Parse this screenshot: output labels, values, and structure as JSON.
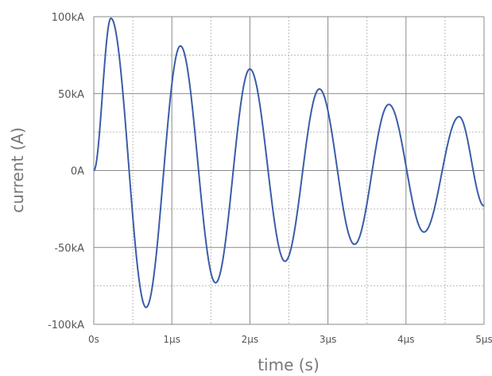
{
  "chart_data": {
    "type": "line",
    "title": "",
    "xlabel": "time (s)",
    "ylabel": "current (A)",
    "xlim": [
      0,
      5e-06
    ],
    "ylim": [
      -100000,
      100000
    ],
    "grid": true,
    "x_ticks": [
      {
        "value": 0,
        "label": "0s"
      },
      {
        "value": 1e-06,
        "label": "1µs"
      },
      {
        "value": 2e-06,
        "label": "2µs"
      },
      {
        "value": 3e-06,
        "label": "3µs"
      },
      {
        "value": 4e-06,
        "label": "4µs"
      },
      {
        "value": 5e-06,
        "label": "5µs"
      }
    ],
    "y_ticks": [
      {
        "value": 100000,
        "label": "100kA"
      },
      {
        "value": 50000,
        "label": "50kA"
      },
      {
        "value": 0,
        "label": "0A"
      },
      {
        "value": -50000,
        "label": "-50kA"
      },
      {
        "value": -100000,
        "label": "-100kA"
      }
    ],
    "colors": {
      "line": "#3a5da8",
      "grid_major": "#888888",
      "grid_minor": "#bbbbbb"
    },
    "series": [
      {
        "x": [
          0,
          2.2e-07,
          6.7e-07,
          1.11e-06,
          1.56e-06,
          2e-06,
          2.45e-06,
          2.89e-06,
          3.34e-06,
          3.78e-06,
          4.23e-06,
          4.68e-06,
          5e-06
        ],
        "values": [
          0,
          99000,
          -89000,
          81000,
          -73000,
          66000,
          -59000,
          53000,
          -48000,
          43000,
          -40000,
          35000,
          -23000
        ]
      }
    ]
  }
}
